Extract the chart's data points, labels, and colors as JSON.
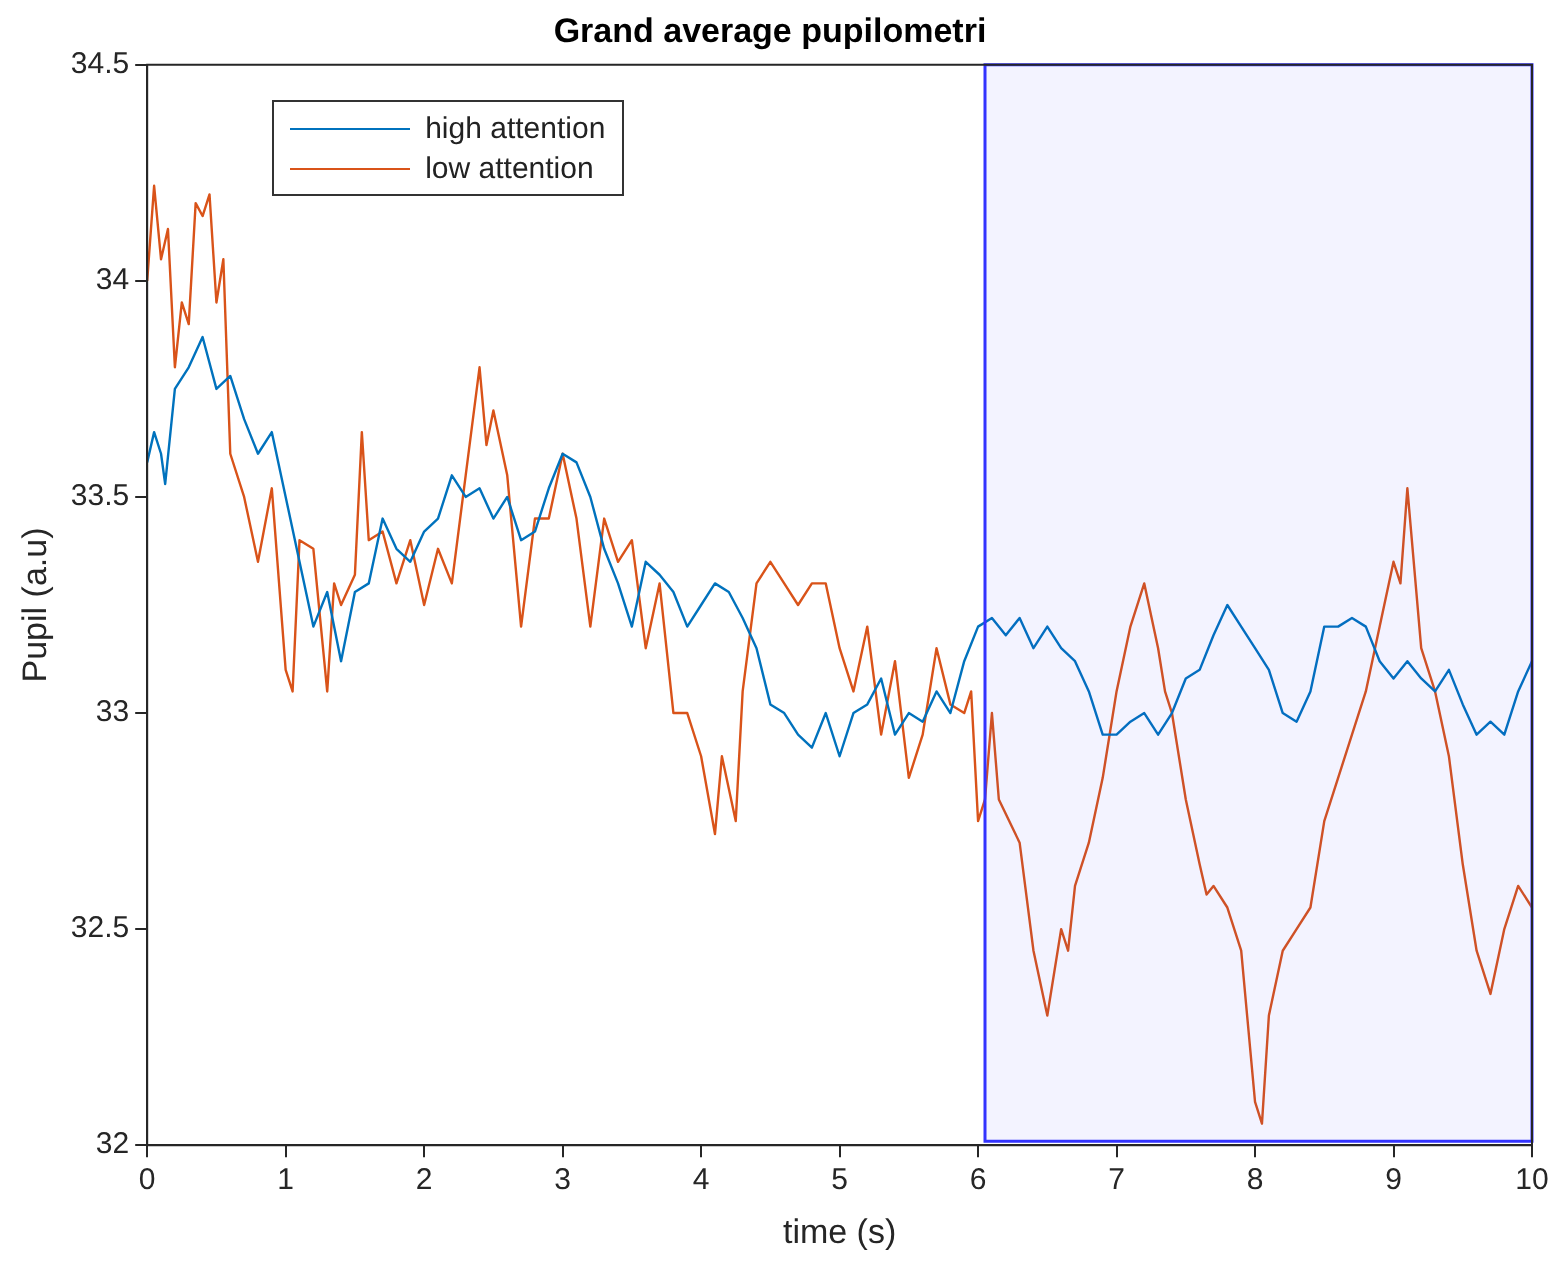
{
  "chart_data": {
    "type": "line",
    "title": "Grand average pupilometri",
    "xlabel": "time (s)",
    "ylabel": "Pupil (a.u)",
    "xlim": [
      0,
      10
    ],
    "xticks": [
      0,
      1,
      2,
      3,
      4,
      5,
      6,
      7,
      8,
      9,
      10
    ],
    "ylim": [
      32,
      34.5
    ],
    "yticks": [
      32,
      32.5,
      33,
      33.5,
      34,
      34.5
    ],
    "grid": false,
    "legend": "top left",
    "marker": "none",
    "line_style": "solid",
    "bands": [
      {
        "axis": "x",
        "from": 6.05,
        "to": 10,
        "color": "#3333ff"
      }
    ],
    "series": [
      {
        "name": "high attention",
        "color": "#0072bd",
        "x": [
          0,
          0.05,
          0.1,
          0.13,
          0.2,
          0.3,
          0.4,
          0.5,
          0.6,
          0.7,
          0.8,
          0.9,
          1.0,
          1.1,
          1.2,
          1.3,
          1.4,
          1.5,
          1.6,
          1.7,
          1.8,
          1.9,
          2.0,
          2.1,
          2.2,
          2.3,
          2.4,
          2.5,
          2.6,
          2.7,
          2.8,
          2.9,
          3.0,
          3.1,
          3.2,
          3.3,
          3.4,
          3.5,
          3.6,
          3.7,
          3.8,
          3.9,
          4.0,
          4.1,
          4.2,
          4.3,
          4.4,
          4.5,
          4.6,
          4.7,
          4.8,
          4.9,
          5.0,
          5.1,
          5.2,
          5.3,
          5.4,
          5.5,
          5.6,
          5.7,
          5.8,
          5.9,
          6.0,
          6.1,
          6.2,
          6.3,
          6.4,
          6.5,
          6.6,
          6.7,
          6.8,
          6.9,
          7.0,
          7.1,
          7.2,
          7.3,
          7.4,
          7.5,
          7.6,
          7.7,
          7.8,
          7.9,
          8.0,
          8.1,
          8.2,
          8.3,
          8.4,
          8.5,
          8.6,
          8.7,
          8.8,
          8.9,
          9.0,
          9.1,
          9.2,
          9.3,
          9.4,
          9.5,
          9.6,
          9.7,
          9.8,
          9.9,
          10
        ],
        "values": [
          33.58,
          33.65,
          33.6,
          33.53,
          33.75,
          33.8,
          33.87,
          33.75,
          33.78,
          33.68,
          33.6,
          33.65,
          33.5,
          33.35,
          33.2,
          33.28,
          33.12,
          33.28,
          33.3,
          33.45,
          33.38,
          33.35,
          33.42,
          33.45,
          33.55,
          33.5,
          33.52,
          33.45,
          33.5,
          33.4,
          33.42,
          33.52,
          33.6,
          33.58,
          33.5,
          33.38,
          33.3,
          33.2,
          33.35,
          33.32,
          33.28,
          33.2,
          33.25,
          33.3,
          33.28,
          33.22,
          33.15,
          33.02,
          33.0,
          32.95,
          32.92,
          33.0,
          32.9,
          33.0,
          33.02,
          33.08,
          32.95,
          33.0,
          32.98,
          33.05,
          33.0,
          33.12,
          33.2,
          33.22,
          33.18,
          33.22,
          33.15,
          33.2,
          33.15,
          33.12,
          33.05,
          32.95,
          32.95,
          32.98,
          33.0,
          32.95,
          33.0,
          33.08,
          33.1,
          33.18,
          33.25,
          33.2,
          33.15,
          33.1,
          33.0,
          32.98,
          33.05,
          33.2,
          33.2,
          33.22,
          33.2,
          33.12,
          33.08,
          33.12,
          33.08,
          33.05,
          33.1,
          33.02,
          32.95,
          32.98,
          32.95,
          33.05,
          33.12
        ]
      },
      {
        "name": "low attention",
        "color": "#d95319",
        "x": [
          0,
          0.05,
          0.1,
          0.15,
          0.2,
          0.25,
          0.3,
          0.35,
          0.4,
          0.45,
          0.5,
          0.55,
          0.6,
          0.7,
          0.8,
          0.9,
          1.0,
          1.05,
          1.1,
          1.2,
          1.3,
          1.35,
          1.4,
          1.5,
          1.55,
          1.6,
          1.7,
          1.8,
          1.9,
          2.0,
          2.1,
          2.2,
          2.3,
          2.4,
          2.45,
          2.5,
          2.6,
          2.7,
          2.8,
          2.9,
          3.0,
          3.1,
          3.2,
          3.3,
          3.4,
          3.5,
          3.6,
          3.7,
          3.8,
          3.9,
          4.0,
          4.1,
          4.15,
          4.25,
          4.3,
          4.4,
          4.5,
          4.6,
          4.7,
          4.8,
          4.9,
          5.0,
          5.1,
          5.2,
          5.3,
          5.4,
          5.5,
          5.6,
          5.7,
          5.8,
          5.9,
          5.95,
          6.0,
          6.05,
          6.1,
          6.15,
          6.3,
          6.4,
          6.5,
          6.6,
          6.65,
          6.7,
          6.8,
          6.9,
          7.0,
          7.1,
          7.2,
          7.3,
          7.35,
          7.4,
          7.5,
          7.6,
          7.65,
          7.7,
          7.8,
          7.9,
          8.0,
          8.05,
          8.1,
          8.2,
          8.3,
          8.4,
          8.5,
          8.6,
          8.7,
          8.8,
          8.9,
          9.0,
          9.05,
          9.1,
          9.2,
          9.3,
          9.4,
          9.5,
          9.6,
          9.7,
          9.8,
          9.9,
          10
        ],
        "values": [
          34.0,
          34.22,
          34.05,
          34.12,
          33.8,
          33.95,
          33.9,
          34.18,
          34.15,
          34.2,
          33.95,
          34.05,
          33.6,
          33.5,
          33.35,
          33.52,
          33.1,
          33.05,
          33.4,
          33.38,
          33.05,
          33.3,
          33.25,
          33.32,
          33.65,
          33.4,
          33.42,
          33.3,
          33.4,
          33.25,
          33.38,
          33.3,
          33.55,
          33.8,
          33.62,
          33.7,
          33.55,
          33.2,
          33.45,
          33.45,
          33.6,
          33.45,
          33.2,
          33.45,
          33.35,
          33.4,
          33.15,
          33.3,
          33.0,
          33.0,
          32.9,
          32.72,
          32.9,
          32.75,
          33.05,
          33.3,
          33.35,
          33.3,
          33.25,
          33.3,
          33.3,
          33.15,
          33.05,
          33.2,
          32.95,
          33.12,
          32.85,
          32.95,
          33.15,
          33.02,
          33.0,
          33.05,
          32.75,
          32.8,
          33.0,
          32.8,
          32.7,
          32.45,
          32.3,
          32.5,
          32.45,
          32.6,
          32.7,
          32.85,
          33.05,
          33.2,
          33.3,
          33.15,
          33.05,
          33.0,
          32.8,
          32.65,
          32.58,
          32.6,
          32.55,
          32.45,
          32.1,
          32.05,
          32.3,
          32.45,
          32.5,
          32.55,
          32.75,
          32.85,
          32.95,
          33.05,
          33.2,
          33.35,
          33.3,
          33.52,
          33.15,
          33.05,
          32.9,
          32.65,
          32.45,
          32.35,
          32.5,
          32.6,
          32.55
        ]
      }
    ]
  }
}
